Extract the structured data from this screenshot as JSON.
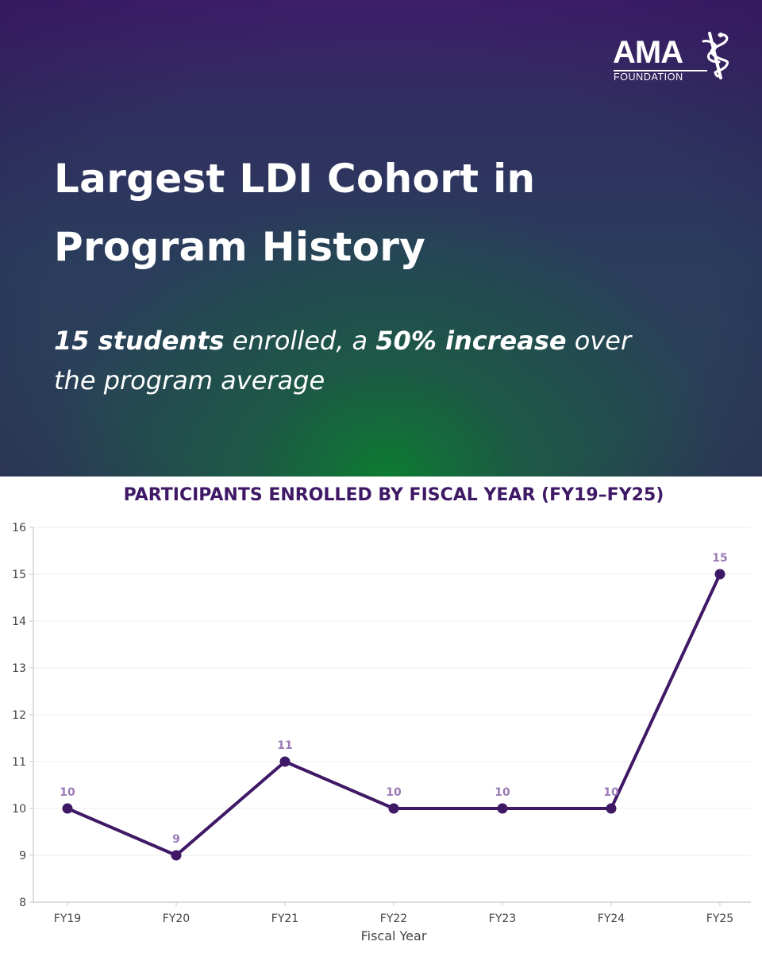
{
  "hero": {
    "logo": {
      "word": "AMA",
      "sub": "FOUNDATION"
    },
    "headline_line1": "Largest LDI Cohort in",
    "headline_line2": "Program History",
    "subline": {
      "part1": "15 students",
      "part2": " enrolled, a ",
      "part3": "50% increase",
      "part4": " over",
      "part5": "the program average"
    }
  },
  "colors": {
    "line": "#3f1866",
    "label": "#9b7ab5",
    "axis": "#c8c8c8",
    "grid": "#ececec",
    "title": "#3f1866",
    "tick_text": "#444444"
  },
  "chart_data": {
    "type": "line",
    "title": "PARTICIPANTS ENROLLED BY FISCAL YEAR (FY19–FY25)",
    "xlabel": "Fiscal Year",
    "ylabel": "",
    "categories": [
      "FY19",
      "FY20",
      "FY21",
      "FY22",
      "FY23",
      "FY24",
      "FY25"
    ],
    "values": [
      10,
      9,
      11,
      10,
      10,
      10,
      15
    ],
    "ylim": [
      8,
      16
    ],
    "yticks": [
      "8",
      "9",
      "10",
      "11",
      "12",
      "13",
      "14",
      "15",
      "16"
    ],
    "data_labels": [
      "10",
      "9",
      "11",
      "10",
      "10",
      "10",
      "15"
    ],
    "grid": "horizontal",
    "legend": "none"
  }
}
